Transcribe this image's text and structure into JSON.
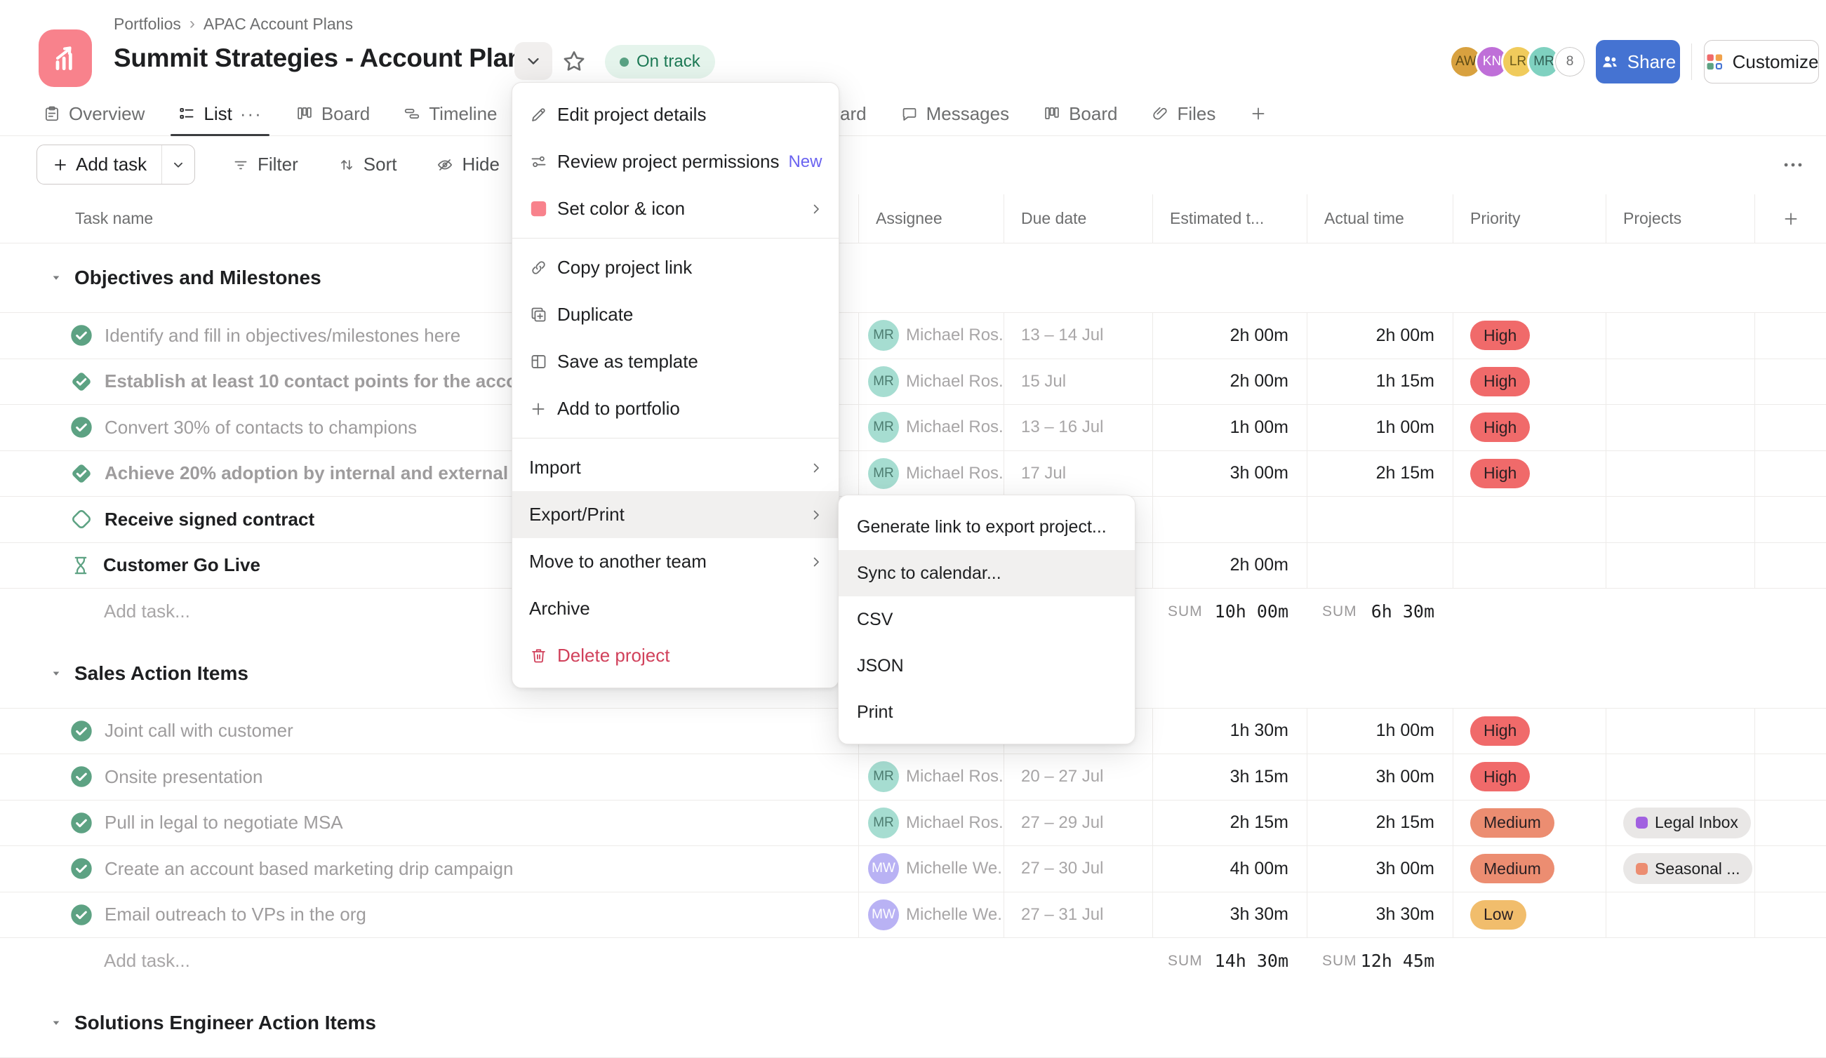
{
  "header": {
    "breadcrumb": [
      "Portfolios",
      "APAC Account Plans"
    ],
    "title": "Summit Strategies - Account Plan",
    "status": "On track",
    "avatars": [
      {
        "initials": "AW",
        "bg": "#d8a13f",
        "fg": "#5d4a14"
      },
      {
        "initials": "KN",
        "bg": "#bf6fd8",
        "fg": "#ffffff"
      },
      {
        "initials": "LR",
        "bg": "#f0cb5c",
        "fg": "#6b5a1a"
      },
      {
        "initials": "MR",
        "bg": "#7fd1c0",
        "fg": "#2f5e53"
      },
      {
        "initials": "8",
        "bg": "#ffffff",
        "fg": "#6d6e6f",
        "outline": true
      }
    ],
    "share_label": "Share",
    "customize_label": "Customize"
  },
  "tabs": {
    "left": [
      {
        "label": "Overview",
        "icon": "clipboard-icon"
      },
      {
        "label": "List",
        "icon": "list-icon",
        "active": true,
        "overflow": "···"
      },
      {
        "label": "Board",
        "icon": "board-icon"
      },
      {
        "label": "Timeline",
        "icon": "timeline-icon"
      }
    ],
    "right": [
      {
        "label": "ard"
      },
      {
        "label": "Messages",
        "icon": "message-icon"
      },
      {
        "label": "Board",
        "icon": "board-icon"
      },
      {
        "label": "Files",
        "icon": "paperclip-icon"
      },
      {
        "label": "",
        "icon": "plus-icon",
        "icon_only": true
      }
    ]
  },
  "toolbar": {
    "add_task_label": "Add task",
    "tools": [
      {
        "label": "Filter",
        "icon": "filter-icon"
      },
      {
        "label": "Sort",
        "icon": "sort-icon"
      },
      {
        "label": "Hide",
        "icon": "hide-icon"
      }
    ]
  },
  "table": {
    "columns": [
      "Task name",
      "Assignee",
      "Due date",
      "Estimated t...",
      "Actual time",
      "Priority",
      "Projects"
    ],
    "sum_label": "SUM",
    "priority_colors": {
      "High": "#f06a6a",
      "Medium": "#ec8d71",
      "Low": "#f1bd6c"
    },
    "sections": [
      {
        "title": "Objectives and Milestones",
        "add_task_label": "Add task...",
        "sum_estimated": "10h 00m",
        "sum_actual": "6h 30m",
        "rows": [
          {
            "icon": "check-circle-icon",
            "name": "Identify and fill in objectives/milestones here",
            "style": "done",
            "assignee": {
              "initials": "MR",
              "name": "Michael Ros...",
              "bg": "#a6ddd1",
              "fg": "#4c7c70"
            },
            "due": "13 – 14 Jul",
            "estimated": "2h 00m",
            "actual": "2h 00m",
            "priority": "High",
            "project": null
          },
          {
            "icon": "check-diamond-icon",
            "name": "Establish at least 10 contact points for the accou",
            "style": "done-medium",
            "assignee": {
              "initials": "MR",
              "name": "Michael Ros...",
              "bg": "#a6ddd1",
              "fg": "#4c7c70"
            },
            "due": "15 Jul",
            "estimated": "2h 00m",
            "actual": "1h 15m",
            "priority": "High",
            "project": null
          },
          {
            "icon": "check-circle-icon",
            "name": "Convert 30% of contacts to champions",
            "style": "done",
            "assignee": {
              "initials": "MR",
              "name": "Michael Ros...",
              "bg": "#a6ddd1",
              "fg": "#4c7c70"
            },
            "due": "13 – 16 Jul",
            "estimated": "1h 00m",
            "actual": "1h 00m",
            "priority": "High",
            "project": null
          },
          {
            "icon": "check-diamond-icon",
            "name": "Achieve 20% adoption by internal and external c",
            "style": "done-medium",
            "assignee": {
              "initials": "MR",
              "name": "Michael Ros...",
              "bg": "#a6ddd1",
              "fg": "#4c7c70"
            },
            "due": "17 Jul",
            "estimated": "3h 00m",
            "actual": "2h 15m",
            "priority": "High",
            "project": null
          },
          {
            "icon": "diamond-outline-icon",
            "name": "Receive signed contract",
            "style": "open-bold",
            "assignee": null,
            "due": null,
            "estimated": null,
            "actual": null,
            "priority": null,
            "project": null
          },
          {
            "icon": "hourglass-icon",
            "name": "Customer Go Live",
            "style": "open-bold",
            "assignee": null,
            "due": null,
            "estimated": "2h 00m",
            "actual": null,
            "priority": null,
            "project": null
          }
        ]
      },
      {
        "title": "Sales Action Items",
        "add_task_label": "Add task...",
        "sum_estimated": "14h 30m",
        "sum_actual": "12h 45m",
        "rows": [
          {
            "icon": "check-circle-icon",
            "name": "Joint call with customer",
            "style": "done",
            "assignee": null,
            "due": null,
            "estimated": "1h 30m",
            "actual": "1h 00m",
            "priority": "High",
            "project": null
          },
          {
            "icon": "check-circle-icon",
            "name": "Onsite presentation",
            "style": "done",
            "assignee": {
              "initials": "MR",
              "name": "Michael Ros...",
              "bg": "#a6ddd1",
              "fg": "#4c7c70"
            },
            "due": "20 – 27 Jul",
            "estimated": "3h 15m",
            "actual": "3h 00m",
            "priority": "High",
            "project": null
          },
          {
            "icon": "check-circle-icon",
            "name": "Pull in legal to negotiate MSA",
            "style": "done",
            "assignee": {
              "initials": "MR",
              "name": "Michael Ros...",
              "bg": "#a6ddd1",
              "fg": "#4c7c70"
            },
            "due": "27 – 29 Jul",
            "estimated": "2h 15m",
            "actual": "2h 15m",
            "priority": "Medium",
            "project": {
              "label": "Legal Inbox",
              "dot": "#a161e0"
            }
          },
          {
            "icon": "check-circle-icon",
            "name": "Create an account based marketing drip campaign",
            "style": "done",
            "assignee": {
              "initials": "MW",
              "name": "Michelle We...",
              "bg": "#b9b2f4",
              "fg": "#ffffff"
            },
            "due": "27 – 30 Jul",
            "estimated": "4h 00m",
            "actual": "3h 00m",
            "priority": "Medium",
            "project": {
              "label": "Seasonal ...",
              "dot": "#ec8d71"
            }
          },
          {
            "icon": "check-circle-icon",
            "name": "Email outreach to VPs in the org",
            "style": "done",
            "assignee": {
              "initials": "MW",
              "name": "Michelle We...",
              "bg": "#b9b2f4",
              "fg": "#ffffff"
            },
            "due": "27 – 31 Jul",
            "estimated": "3h 30m",
            "actual": "3h 30m",
            "priority": "Low",
            "project": null
          }
        ]
      },
      {
        "title": "Solutions Engineer Action Items",
        "rows": []
      }
    ]
  },
  "menu": {
    "items": [
      {
        "label": "Edit project details",
        "icon": "pencil-icon"
      },
      {
        "label": "Review project permissions",
        "icon": "sliders-icon",
        "badge": "New"
      },
      {
        "label": "Set color & icon",
        "icon": "swatch-icon",
        "chevron": true
      },
      {
        "divider": true
      },
      {
        "label": "Copy project link",
        "icon": "link-icon"
      },
      {
        "label": "Duplicate",
        "icon": "duplicate-icon"
      },
      {
        "label": "Save as template",
        "icon": "template-icon"
      },
      {
        "label": "Add to portfolio",
        "icon": "plus-icon"
      },
      {
        "divider": true
      },
      {
        "label": "Import",
        "chevron": true
      },
      {
        "label": "Export/Print",
        "chevron": true,
        "highlighted": true
      },
      {
        "label": "Move to another team",
        "chevron": true
      },
      {
        "label": "Archive"
      },
      {
        "label": "Delete project",
        "icon": "trash-icon",
        "danger": true
      }
    ]
  },
  "submenu": {
    "items": [
      {
        "label": "Generate link to export project..."
      },
      {
        "label": "Sync to calendar...",
        "highlighted": true
      },
      {
        "label": "CSV"
      },
      {
        "label": "JSON"
      },
      {
        "label": "Print"
      }
    ]
  }
}
